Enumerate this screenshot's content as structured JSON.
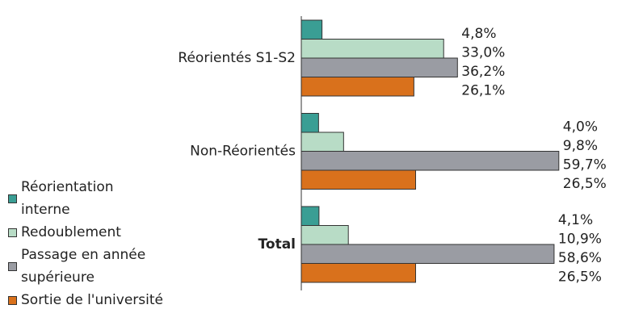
{
  "chart_data": {
    "type": "hbar",
    "categories": [
      "Réorientés S1-S2",
      "Non-Réorientés",
      "Total"
    ],
    "series": [
      {
        "name": "Réorientation interne",
        "color": "#3a9e94",
        "values": [
          4.8,
          4.0,
          4.1
        ],
        "value_labels": [
          "4,8%",
          "4,0%",
          "4,1%"
        ]
      },
      {
        "name": "Redoublement",
        "color": "#b8dcc6",
        "values": [
          33.0,
          9.8,
          10.9
        ],
        "value_labels": [
          "33,0%",
          "9,8%",
          "10,9%"
        ]
      },
      {
        "name": "Passage en année supérieure",
        "color": "#9a9ca3",
        "values": [
          36.2,
          59.7,
          58.6
        ],
        "value_labels": [
          "36,2%",
          "59,7%",
          "58,6%"
        ]
      },
      {
        "name": "Sortie de l'université",
        "color": "#d9711c",
        "values": [
          26.1,
          26.5,
          26.5
        ],
        "value_labels": [
          "26,1%",
          "26,5%",
          "26,5%"
        ]
      }
    ],
    "legend": "bottom-left"
  }
}
